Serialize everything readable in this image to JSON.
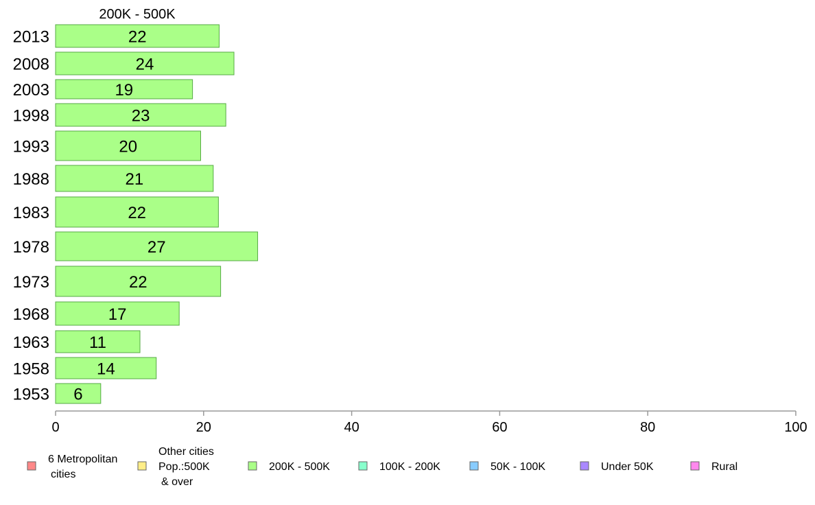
{
  "chart_data": {
    "type": "bar",
    "orientation": "horizontal",
    "panel_title": "200K - 500K",
    "categories": [
      "2013",
      "2008",
      "2003",
      "1998",
      "1993",
      "1988",
      "1983",
      "1978",
      "1973",
      "1968",
      "1963",
      "1958",
      "1953"
    ],
    "values": [
      22,
      24,
      19,
      23,
      20,
      21,
      22,
      27,
      22,
      17,
      11,
      14,
      6
    ],
    "bar_lengths": [
      22.1,
      24.1,
      18.5,
      23.0,
      19.6,
      21.3,
      22.0,
      27.3,
      22.3,
      16.7,
      11.4,
      13.6,
      6.1
    ],
    "xlim": [
      0,
      100
    ],
    "xticks": [
      0,
      20,
      40,
      60,
      80,
      100
    ],
    "grid": false,
    "bar_color": "#aaff88",
    "bar_edge_color": "#55aa44",
    "legend_position": "bottom",
    "legend": [
      {
        "label": "6 Metropolitan\ncities",
        "color": "#ff8888"
      },
      {
        "label": "Other cities\nPop.:500K\n& over",
        "color": "#ffee88"
      },
      {
        "label": "200K - 500K",
        "color": "#aaff88"
      },
      {
        "label": "100K - 200K",
        "color": "#88ffcc"
      },
      {
        "label": "50K - 100K",
        "color": "#88ccff"
      },
      {
        "label": "Under 50K",
        "color": "#aa88ff"
      },
      {
        "label": "Rural",
        "color": "#ff88ee"
      }
    ]
  }
}
